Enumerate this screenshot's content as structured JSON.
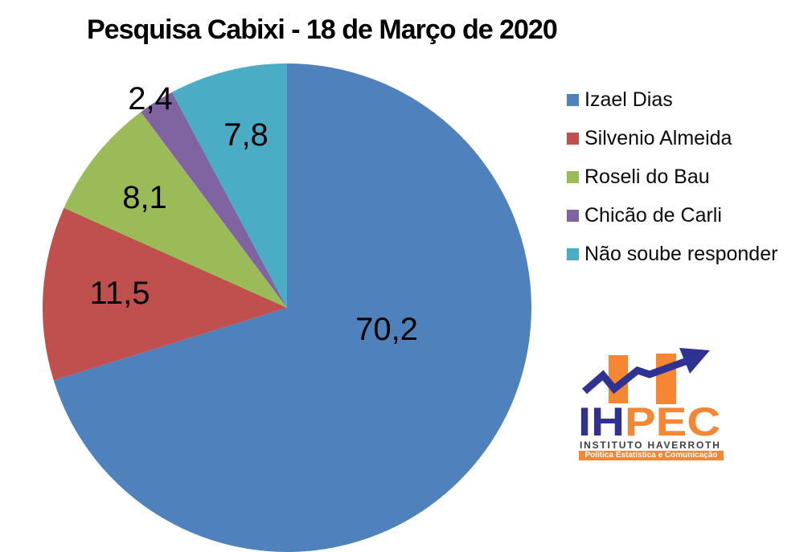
{
  "title": "Pesquisa Cabixi - 18 de Março de 2020",
  "chart_data": {
    "type": "pie",
    "title": "Pesquisa Cabixi - 18 de Março de 2020",
    "unit": "percent",
    "categories": [
      "Izael Dias",
      "Silvenio Almeida",
      "Roseli do Bau",
      "Chicão de Carli",
      "Não soube responder"
    ],
    "values": [
      70.2,
      11.5,
      8.1,
      2.4,
      7.8
    ],
    "value_labels": [
      "70,2",
      "11,5",
      "8,1",
      "2,4",
      "7,8"
    ],
    "colors": [
      "#4F81BD",
      "#C0504D",
      "#9BBB59",
      "#8064A2",
      "#4BACC6"
    ],
    "start_angle": "12 o'clock, clockwise",
    "legend_position": "right",
    "background": "#FFFFFF"
  },
  "logo": {
    "acronym_navy": "IH",
    "acronym_orange": "PEC",
    "institute": "INSTITUTO HAVERROTH",
    "tagline": "Política Estatística e Comunicação",
    "navy": "#2F3193",
    "orange": "#F58634"
  }
}
